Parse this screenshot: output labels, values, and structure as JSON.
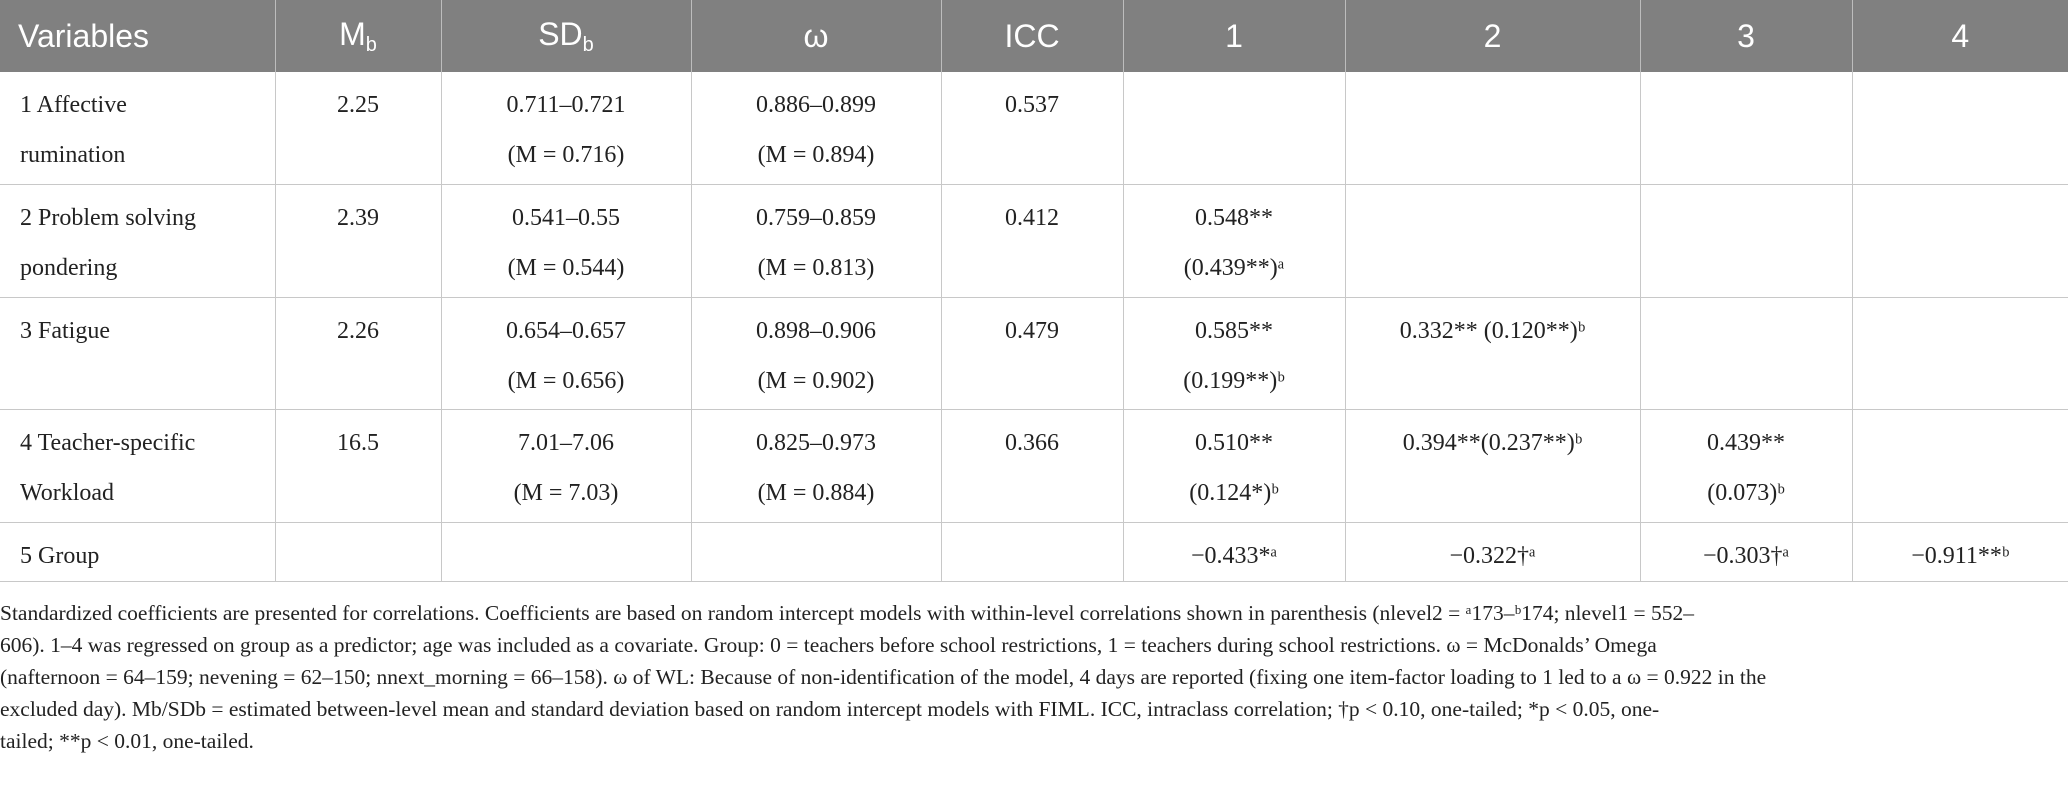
{
  "table": {
    "headers": {
      "variables": "Variables",
      "mean": "M",
      "mean_sub": "b",
      "sd": "SD",
      "sd_sub": "b",
      "omega": "ω",
      "icc": "ICC",
      "c1": "1",
      "c2": "2",
      "c3": "3",
      "c4": "4"
    },
    "rows": [
      {
        "variable_l1": "1 Affective",
        "variable_l2": "rumination",
        "mean": "2.25",
        "sd_l1": "0.711–0.721",
        "sd_l2": "(M = 0.716)",
        "omega_l1": "0.886–0.899",
        "omega_l2": "(M = 0.894)",
        "icc": "0.537",
        "c1_l1": "",
        "c1_l2": "",
        "c2_l1": "",
        "c3_l1": "",
        "c3_l2": "",
        "c4_l1": ""
      },
      {
        "variable_l1": "2 Problem solving",
        "variable_l2": "pondering",
        "mean": "2.39",
        "sd_l1": "0.541–0.55",
        "sd_l2": "(M = 0.544)",
        "omega_l1": "0.759–0.859",
        "omega_l2": "(M = 0.813)",
        "icc": "0.412",
        "c1_l1": "0.548**",
        "c1_l2": "(0.439**)ᵃ",
        "c2_l1": "",
        "c3_l1": "",
        "c3_l2": "",
        "c4_l1": ""
      },
      {
        "variable_l1": "3 Fatigue",
        "variable_l2": "",
        "mean": "2.26",
        "sd_l1": "0.654–0.657",
        "sd_l2": "(M = 0.656)",
        "omega_l1": "0.898–0.906",
        "omega_l2": "(M = 0.902)",
        "icc": "0.479",
        "c1_l1": "0.585**",
        "c1_l2": "(0.199**)ᵇ",
        "c2_l1": "0.332** (0.120**)ᵇ",
        "c3_l1": "",
        "c3_l2": "",
        "c4_l1": ""
      },
      {
        "variable_l1": "4 Teacher-specific",
        "variable_l2": "Workload",
        "mean": "16.5",
        "sd_l1": "7.01–7.06",
        "sd_l2": "(M = 7.03)",
        "omega_l1": "0.825–0.973",
        "omega_l2": "(M = 0.884)",
        "icc": "0.366",
        "c1_l1": "0.510**",
        "c1_l2": "(0.124*)ᵇ",
        "c2_l1": "0.394**(0.237**)ᵇ",
        "c3_l1": "0.439**",
        "c3_l2": "(0.073)ᵇ",
        "c4_l1": ""
      },
      {
        "variable_l1": "5 Group",
        "variable_l2": "",
        "mean": "",
        "sd_l1": "",
        "sd_l2": "",
        "omega_l1": "",
        "omega_l2": "",
        "icc": "",
        "c1_l1": "−0.433*ᵃ",
        "c1_l2": "",
        "c2_l1": "−0.322†ᵃ",
        "c3_l1": "−0.303†ᵃ",
        "c3_l2": "",
        "c4_l1": "−0.911**ᵇ"
      }
    ]
  },
  "note": {
    "line1": "Standardized coefficients are presented for correlations. Coefficients are based on random intercept models with within-level correlations shown in parenthesis (nlevel2 = ᵃ173–ᵇ174; nlevel1 = 552–",
    "line2": "606). 1–4 was regressed on group as a predictor; age was included as a covariate. Group: 0 = teachers before school restrictions, 1 = teachers during school restrictions. ω = McDonalds’ Omega",
    "line3": "(nafternoon = 64–159; nevening = 62–150; nnext_morning = 66–158). ω of WL: Because of non-identification of the model, 4 days are reported (fixing one item-factor loading to 1 led to a ω = 0.922 in the",
    "line4": "excluded day). Mb/SDb = estimated between-level mean and standard deviation based on random intercept models with FIML. ICC, intraclass correlation; †p < 0.10, one-tailed; *p < 0.05, one-",
    "line5": "tailed; **p < 0.01, one-tailed."
  }
}
